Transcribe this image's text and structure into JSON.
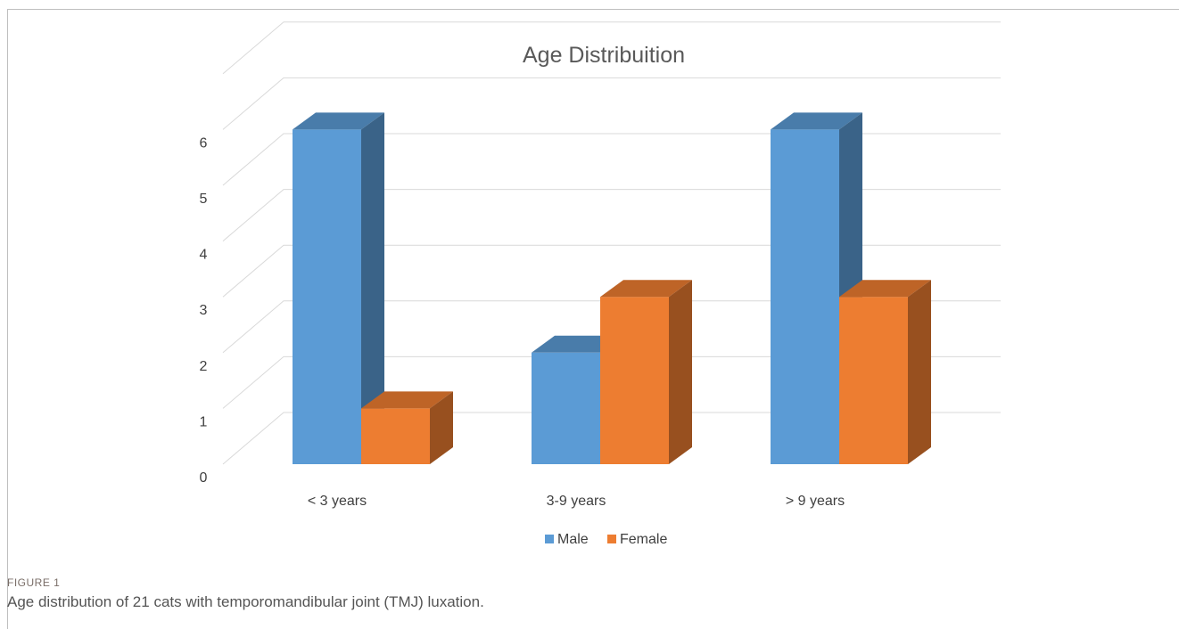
{
  "chart_data": {
    "type": "bar",
    "title": "Age Distribuition",
    "categories": [
      "< 3 years",
      "3-9 years",
      "> 9 years"
    ],
    "series": [
      {
        "name": "Male",
        "values": [
          6,
          2,
          6
        ],
        "color": "#5b9bd5"
      },
      {
        "name": "Female",
        "values": [
          1,
          3,
          3
        ],
        "color": "#ed7d31"
      }
    ],
    "ylim": [
      0,
      6
    ],
    "yticks": [
      "0",
      "1",
      "2",
      "3",
      "4",
      "5",
      "6"
    ],
    "grid": true,
    "legend": "bottom",
    "style": "3d-column"
  },
  "figure": {
    "label": "FIGURE 1",
    "caption": "Age distribution of 21 cats with temporomandibular joint (TMJ) luxation."
  }
}
